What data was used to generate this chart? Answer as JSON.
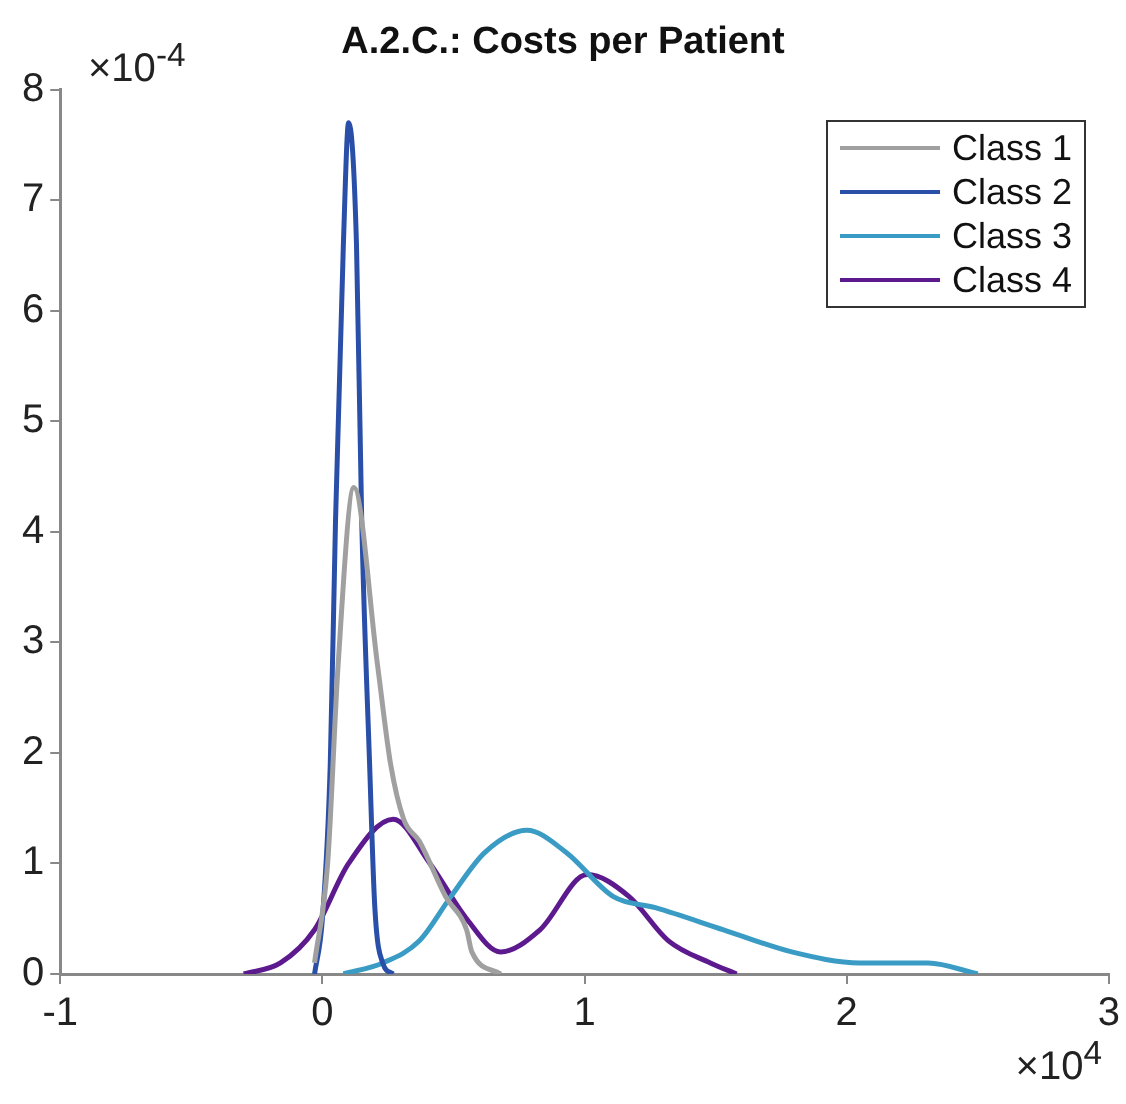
{
  "chart_data": {
    "type": "line",
    "title": "A.2.C.: Costs per Patient",
    "xlim": [
      -1,
      3
    ],
    "xticks": [
      -1,
      0,
      1,
      2,
      3
    ],
    "ylim": [
      0,
      8
    ],
    "yticks": [
      0,
      1,
      2,
      3,
      4,
      5,
      6,
      7,
      8
    ],
    "annotations": [
      "×10$^{-4}$",
      "×10$^{4}$"
    ],
    "grid": false,
    "legend": "top right",
    "marker": "none",
    "line_style": "solid",
    "series": [
      {
        "name": "Class 1",
        "color": "#a0a0a0",
        "x": [
          -0.03,
          0.02,
          0.06,
          0.12,
          0.21,
          0.26,
          0.31,
          0.37,
          0.47,
          0.55,
          0.57,
          0.68
        ],
        "values": [
          0.1,
          1.0,
          2.8,
          4.4,
          2.8,
          1.9,
          1.4,
          1.2,
          0.7,
          0.4,
          0.2,
          0
        ]
      },
      {
        "name": "Class 2",
        "color": "#2a4fa8",
        "x": [
          -0.03,
          0,
          0.03,
          0.05,
          0.08,
          0.1,
          0.13,
          0.15,
          0.18,
          0.2,
          0.23,
          0.27
        ],
        "values": [
          0,
          0.5,
          1.9,
          4.1,
          6.6,
          7.7,
          6.6,
          4.1,
          1.9,
          0.6,
          0.1,
          0
        ]
      },
      {
        "name": "Class 3",
        "color": "#3a9cc4",
        "x": [
          0.08,
          0.23,
          0.37,
          0.49,
          0.62,
          0.78,
          0.93,
          1.11,
          1.27,
          1.53,
          1.79,
          2.05,
          2.31,
          2.5
        ],
        "values": [
          0,
          0.1,
          0.3,
          0.7,
          1.1,
          1.3,
          1.1,
          0.7,
          0.6,
          0.4,
          0.2,
          0.1,
          0.1,
          0
        ]
      },
      {
        "name": "Class 4",
        "color": "#5c1a8e",
        "x": [
          -0.3,
          -0.16,
          -0.03,
          0.1,
          0.27,
          0.41,
          0.55,
          0.68,
          0.83,
          1.01,
          1.17,
          1.32,
          1.48,
          1.58
        ],
        "values": [
          0,
          0.1,
          0.4,
          1.0,
          1.4,
          1.0,
          0.5,
          0.2,
          0.4,
          0.9,
          0.7,
          0.3,
          0.1,
          0
        ]
      }
    ]
  }
}
